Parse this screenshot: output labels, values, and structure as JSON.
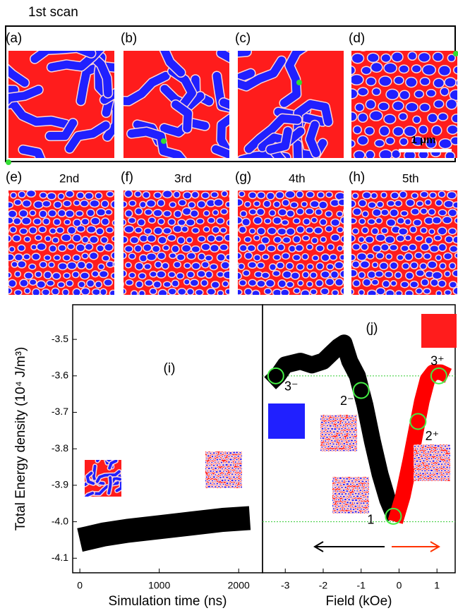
{
  "figure": {
    "top_label": "1st scan",
    "scale_bar": "1 μm",
    "panels": [
      {
        "label": "(a)"
      },
      {
        "label": "(b)"
      },
      {
        "label": "(c)"
      },
      {
        "label": "(d)"
      },
      {
        "label": "(e)",
        "caption": "2nd"
      },
      {
        "label": "(f)",
        "caption": "3rd"
      },
      {
        "label": "(g)",
        "caption": "4th"
      },
      {
        "label": "(h)",
        "caption": "5th"
      }
    ]
  },
  "chart_data": [
    {
      "type": "line",
      "annotation": "(i)",
      "ylabel": "Total Energy density (10⁴ J/m³)",
      "xlabel": "Simulation time (ns)",
      "xlim": [
        -90,
        2300
      ],
      "xticks": [
        0,
        1000,
        2000
      ],
      "ylim": [
        -4.14,
        -3.405
      ],
      "yticks": [
        -3.5,
        -3.6,
        -3.7,
        -3.8,
        -3.9,
        {
          "value": -4,
          "label": "-4.0"
        },
        -4.1
      ],
      "series": [
        {
          "color": "#000000",
          "x": [
            0,
            100,
            300,
            600,
            1000,
            1400,
            1800,
            2140
          ],
          "values": [
            -4.05,
            -4.045,
            -4.035,
            -4.025,
            -4.015,
            -4.005,
            -3.995,
            -3.99
          ]
        }
      ]
    },
    {
      "type": "line",
      "annotation": "(j)",
      "xlabel": "Field (kOe)",
      "xlim": [
        -3.6,
        1.48
      ],
      "xticks": [
        -3,
        -2,
        -1,
        0,
        1
      ],
      "ylim": [
        -4.14,
        -3.405
      ],
      "hlines": [
        -3.6,
        -4
      ],
      "series": [
        {
          "color": "#000000",
          "x": [
            -3.4,
            -3.2,
            -3,
            -2.6,
            -2.3,
            -2,
            -1.8,
            -1.6,
            -1.45,
            -1.3,
            -1.1,
            -0.9,
            -0.7,
            -0.5,
            -0.3,
            -0.1
          ],
          "values": [
            -3.62,
            -3.6,
            -3.57,
            -3.56,
            -3.57,
            -3.56,
            -3.54,
            -3.52,
            -3.51,
            -3.56,
            -3.6,
            -3.68,
            -3.78,
            -3.87,
            -3.94,
            -3.99
          ]
        },
        {
          "color": "#ff0000",
          "x": [
            -0.1,
            0.1,
            0.3,
            0.45,
            0.6,
            0.75,
            0.9,
            1.1,
            1.3
          ],
          "values": [
            -4.0,
            -3.93,
            -3.83,
            -3.75,
            -3.67,
            -3.61,
            -3.59,
            -3.59,
            -3.6
          ]
        }
      ],
      "point_labels": [
        {
          "label": "3⁻",
          "x": -3.25,
          "y": -3.6
        },
        {
          "label": "2⁻",
          "x": -1,
          "y": -3.64
        },
        {
          "label": "1",
          "x": -0.15,
          "y": -3.985
        },
        {
          "label": "2⁺",
          "x": 0.5,
          "y": -3.725
        },
        {
          "label": "3⁺",
          "x": 1.05,
          "y": -3.6
        }
      ]
    }
  ]
}
